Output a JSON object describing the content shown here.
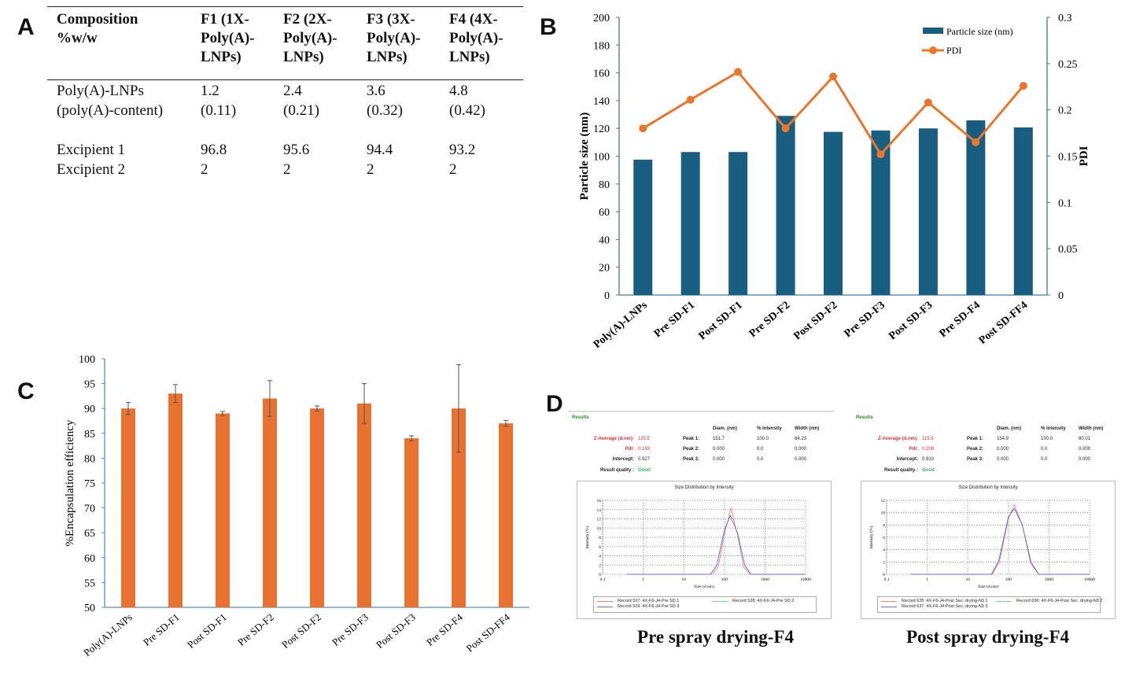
{
  "panel_labels": {
    "a": "A",
    "b": "B",
    "c": "C",
    "d": "D"
  },
  "table": {
    "headers": [
      "Composition %w/w",
      "F1 (1X-Poly(A)-LNPs)",
      "F2 (2X-Poly(A)-LNPs)",
      "F3 (3X-Poly(A)-LNPs)",
      "F4 (4X-Poly(A)-LNPs)"
    ],
    "header_lines": [
      [
        "Composition",
        "%w/w"
      ],
      [
        "F1 (1X-",
        "Poly(A)-",
        "LNPs)"
      ],
      [
        "F2 (2X-",
        "Poly(A)-",
        "LNPs)"
      ],
      [
        "F3 (3X-",
        "Poly(A)-",
        "LNPs)"
      ],
      [
        "F4 (4X-",
        "Poly(A)-",
        "LNPs)"
      ]
    ],
    "rows": [
      {
        "label": [
          "Poly(A)-LNPs",
          "(poly(A)-content)"
        ],
        "values": [
          [
            "1.2",
            "(0.11)"
          ],
          [
            "2.4",
            "(0.21)"
          ],
          [
            "3.6",
            "(0.32)"
          ],
          [
            "4.8",
            "(0.42)"
          ]
        ]
      },
      {
        "label": [
          "Excipient 1"
        ],
        "values": [
          [
            "96.8"
          ],
          [
            "95.6"
          ],
          [
            "94.4"
          ],
          [
            "93.2"
          ]
        ]
      },
      {
        "label": [
          "Excipient 2"
        ],
        "values": [
          [
            "2"
          ],
          [
            "2"
          ],
          [
            "2"
          ],
          [
            "2"
          ]
        ]
      }
    ]
  },
  "chart_data": [
    {
      "type": "bar+line",
      "panel": "B",
      "categories": [
        "Poly(A)-LNPs",
        "Pre SD-F1",
        "Post SD-F1",
        "Pre SD-F2",
        "Post SD-F2",
        "Pre SD-F3",
        "Post SD-F3",
        "Pre SD-F4",
        "Post SD-FF4"
      ],
      "series": [
        {
          "name": "Particle size (nm)",
          "type": "bar",
          "axis": "left",
          "values": [
            97.5,
            103,
            103,
            129,
            117.5,
            118.5,
            120,
            125.8,
            120.7
          ],
          "color": "#175e80"
        },
        {
          "name": "PDI",
          "type": "line",
          "axis": "right",
          "values": [
            0.18,
            0.211,
            0.241,
            0.18,
            0.236,
            0.152,
            0.208,
            0.165,
            0.226
          ],
          "color": "#e8772e"
        }
      ],
      "ylabel": "Particle size (nm)",
      "y2label": "PDI",
      "ylim": [
        0,
        200
      ],
      "y2lim": [
        0,
        0.3
      ],
      "yticks": [
        "0",
        "20",
        "40",
        "60",
        "80",
        "100",
        "120",
        "140",
        "160",
        "180",
        "200"
      ],
      "y2ticks": [
        "0",
        "0.05",
        "0.1",
        "0.15",
        "0.2",
        "0.25",
        "0.3"
      ],
      "legend": "top-right",
      "grid": false
    },
    {
      "type": "bar",
      "panel": "C",
      "categories": [
        "Poly(A)-LNPs",
        "Pre SD-F1",
        "Post SD-F1",
        "Pre SD-F2",
        "Post SD-F2",
        "Pre SD-F3",
        "Post SD-F3",
        "Pre SD-F4",
        "Post SD-FF4"
      ],
      "values": [
        90,
        93,
        89,
        92,
        90,
        91,
        84,
        90,
        87
      ],
      "errors": [
        1.2,
        1.8,
        0.4,
        3.6,
        0.5,
        4,
        0.5,
        8.8,
        0.6
      ],
      "color": "#e8722f",
      "ylabel": "%Encapsulation efficiency",
      "ylim": [
        50,
        100
      ],
      "yticks": [
        "50",
        "55",
        "60",
        "65",
        "70",
        "75",
        "80",
        "85",
        "90",
        "95",
        "100"
      ],
      "grid": false
    }
  ],
  "dls": {
    "column_headers": [
      "Diam. (nm)",
      "% Intensity",
      "Width (nm)"
    ],
    "labels": {
      "results": "Results",
      "zavg": "Z-Average (d.nm):",
      "pdi": "Pdl:",
      "intercept": "Intercept:",
      "quality": "Result quality :",
      "peak1": "Peak 1:",
      "peak2": "Peak 2:",
      "peak3": "Peak 3:",
      "chart_title": "Size Distribution by Intensity",
      "xlabel": "Size (d.nm)",
      "ylabel": "Intensity (%)"
    },
    "xticks": [
      "0.1",
      "1",
      "10",
      "100",
      "1000",
      "10000"
    ],
    "reports": [
      {
        "caption": "Pre spray drying-F4",
        "zavg": "125.5",
        "pdi": "0.169",
        "intercept": "0.927",
        "quality": "Good",
        "peaks": [
          [
            "151.7",
            "100.0",
            "64.23"
          ],
          [
            "0.000",
            "0.0",
            "0.000"
          ],
          [
            "0.000",
            "0.0",
            "0.000"
          ]
        ],
        "ymax": 16,
        "yticks": [
          "0",
          "2",
          "4",
          "6",
          "8",
          "10",
          "12",
          "14",
          "16"
        ],
        "records": [
          {
            "name": "Record 527: 4X-F6-J4-Pre SD 1",
            "color": "#f08080",
            "points": [
              [
                50,
                0
              ],
              [
                70,
                1.5
              ],
              [
                100,
                8.5
              ],
              [
                145,
                14.4
              ],
              [
                210,
                8.5
              ],
              [
                300,
                1.5
              ],
              [
                430,
                0
              ]
            ]
          },
          {
            "name": "Record 528: 4X-F6-J4-Pre SD 2",
            "color": "#7fd88a",
            "points": [
              [
                45,
                0
              ],
              [
                65,
                1.8
              ],
              [
                100,
                9.5
              ],
              [
                140,
                12.8
              ],
              [
                210,
                9
              ],
              [
                320,
                1.8
              ],
              [
                450,
                0
              ]
            ]
          },
          {
            "name": "Record 529: 4X-F6-J4-Pre SD 3",
            "color": "#6a6ae0",
            "points": [
              [
                45,
                0
              ],
              [
                65,
                1.9
              ],
              [
                100,
                9.6
              ],
              [
                140,
                12.7
              ],
              [
                210,
                9
              ],
              [
                320,
                1.9
              ],
              [
                450,
                0
              ]
            ]
          }
        ]
      },
      {
        "caption": "Post spray drying-F4",
        "zavg": "119.9",
        "pdi": "0.206",
        "intercept": "0.910",
        "quality": "Good",
        "peaks": [
          [
            "154.9",
            "100.0",
            "80.01"
          ],
          [
            "0.000",
            "0.0",
            "0.000"
          ],
          [
            "0.000",
            "0.0",
            "0.000"
          ]
        ],
        "ymax": 12,
        "yticks": [
          "0",
          "2",
          "4",
          "6",
          "8",
          "10",
          "12"
        ],
        "records": [
          {
            "name": "Record 635: 4X-F6-J4-Post Sec. drying-N3 1",
            "color": "#f08080",
            "points": [
              [
                40,
                0
              ],
              [
                60,
                2
              ],
              [
                100,
                9
              ],
              [
                140,
                11.3
              ],
              [
                220,
                8
              ],
              [
                350,
                1.8
              ],
              [
                550,
                0
              ]
            ]
          },
          {
            "name": "Record 636: 4X-F6-J4-Post Sec. drying-N3 2",
            "color": "#7fd88a",
            "points": [
              [
                38,
                0
              ],
              [
                58,
                2.2
              ],
              [
                100,
                9.3
              ],
              [
                140,
                10.6
              ],
              [
                220,
                8
              ],
              [
                360,
                2
              ],
              [
                560,
                0
              ]
            ]
          },
          {
            "name": "Record 637: 4X-F6-J4-Post Sec. drying-N3 3",
            "color": "#6a6ae0",
            "points": [
              [
                38,
                0
              ],
              [
                58,
                2.2
              ],
              [
                100,
                9.3
              ],
              [
                140,
                10.7
              ],
              [
                220,
                8
              ],
              [
                360,
                2
              ],
              [
                560,
                0
              ]
            ]
          }
        ]
      }
    ]
  }
}
